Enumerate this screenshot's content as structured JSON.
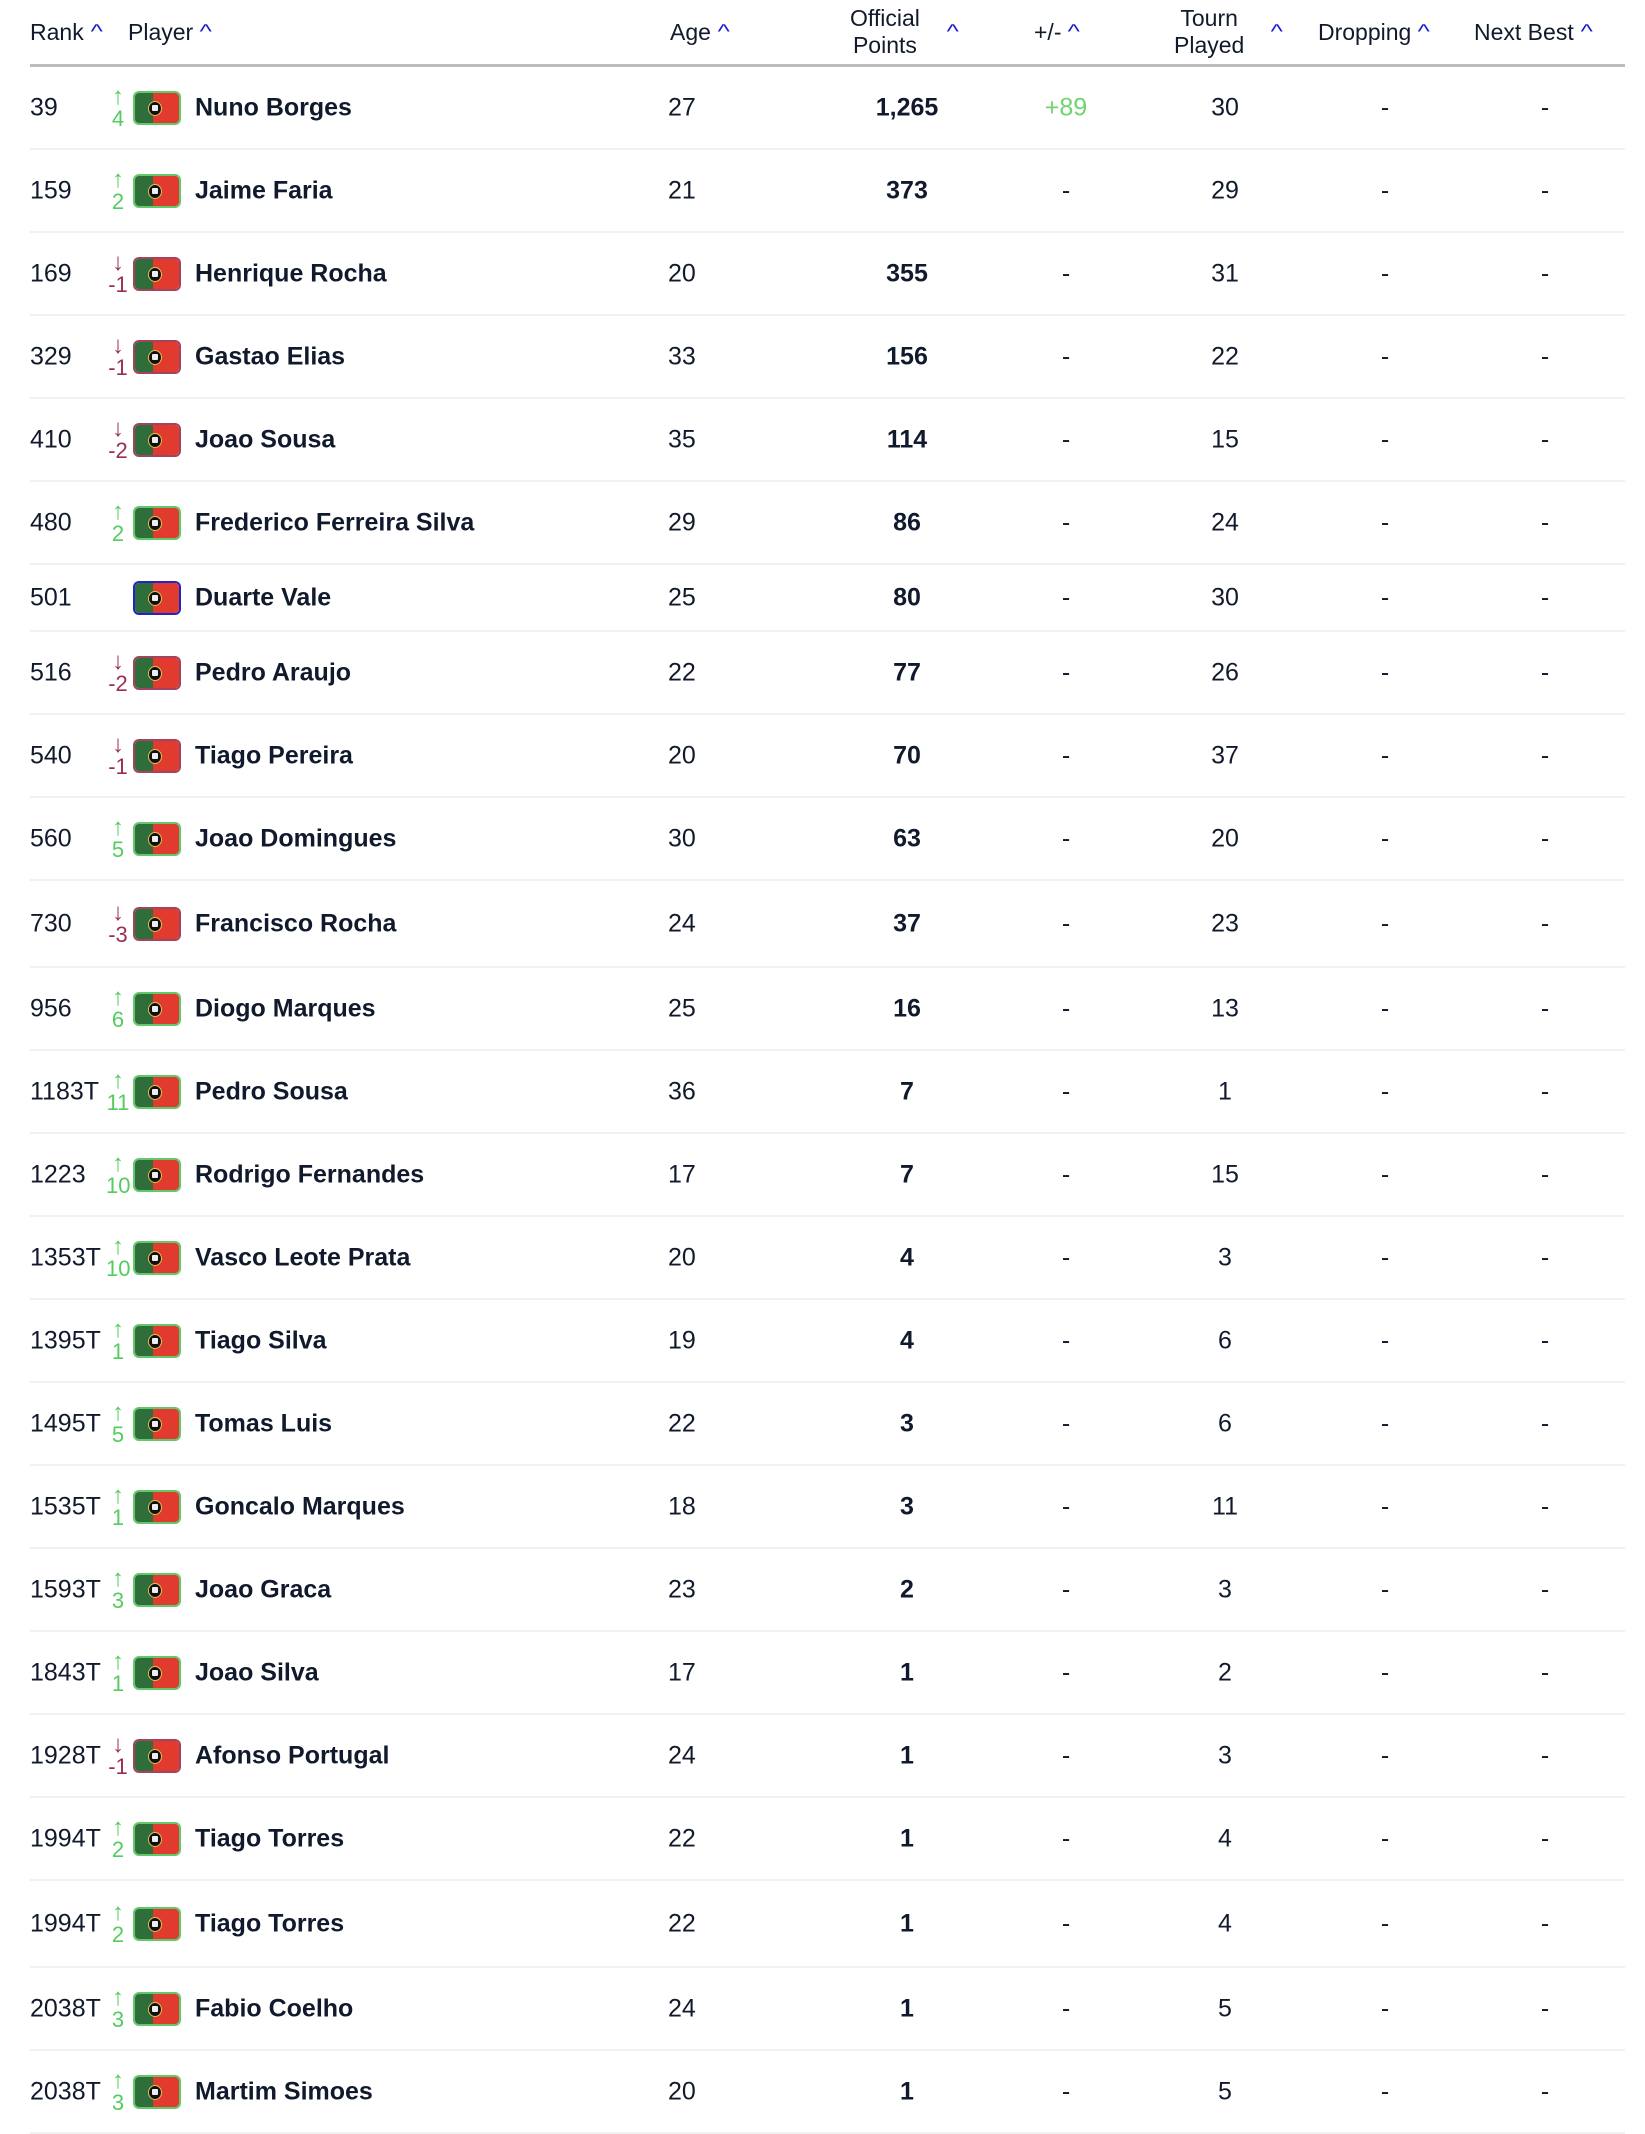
{
  "colors": {
    "up": "#55cc5f",
    "down": "#9a2f55",
    "sort_caret": "#1a1ad6",
    "positive_delta": "#6fd36f"
  },
  "header": {
    "rank": "Rank",
    "player": "Player",
    "age": "Age",
    "official_points_1": "Official",
    "official_points_2": "Points",
    "plus_minus": "+/-",
    "tourn_1": "Tourn",
    "tourn_2": "Played",
    "dropping": "Dropping",
    "next_best": "Next Best",
    "sort_icon": "^"
  },
  "rows": [
    {
      "rank": "39",
      "dir": "up",
      "change": "4",
      "name": "Nuno Borges",
      "age": "27",
      "points": "1,265",
      "pm": "+89",
      "played": "30",
      "dropping": "-",
      "next_best": "-"
    },
    {
      "rank": "159",
      "dir": "up",
      "change": "2",
      "name": "Jaime Faria",
      "age": "21",
      "points": "373",
      "pm": "-",
      "played": "29",
      "dropping": "-",
      "next_best": "-"
    },
    {
      "rank": "169",
      "dir": "down",
      "change": "-1",
      "name": "Henrique Rocha",
      "age": "20",
      "points": "355",
      "pm": "-",
      "played": "31",
      "dropping": "-",
      "next_best": "-"
    },
    {
      "rank": "329",
      "dir": "down",
      "change": "-1",
      "name": "Gastao Elias",
      "age": "33",
      "points": "156",
      "pm": "-",
      "played": "22",
      "dropping": "-",
      "next_best": "-"
    },
    {
      "rank": "410",
      "dir": "down",
      "change": "-2",
      "name": "Joao Sousa",
      "age": "35",
      "points": "114",
      "pm": "-",
      "played": "15",
      "dropping": "-",
      "next_best": "-"
    },
    {
      "rank": "480",
      "dir": "up",
      "change": "2",
      "name": "Frederico Ferreira Silva",
      "age": "29",
      "points": "86",
      "pm": "-",
      "played": "24",
      "dropping": "-",
      "next_best": "-"
    },
    {
      "rank": "501",
      "dir": "none",
      "change": "",
      "name": "Duarte Vale",
      "age": "25",
      "points": "80",
      "pm": "-",
      "played": "30",
      "dropping": "-",
      "next_best": "-"
    },
    {
      "rank": "516",
      "dir": "down",
      "change": "-2",
      "name": "Pedro Araujo",
      "age": "22",
      "points": "77",
      "pm": "-",
      "played": "26",
      "dropping": "-",
      "next_best": "-"
    },
    {
      "rank": "540",
      "dir": "down",
      "change": "-1",
      "name": "Tiago Pereira",
      "age": "20",
      "points": "70",
      "pm": "-",
      "played": "37",
      "dropping": "-",
      "next_best": "-"
    },
    {
      "rank": "560",
      "dir": "up",
      "change": "5",
      "name": "Joao Domingues",
      "age": "30",
      "points": "63",
      "pm": "-",
      "played": "20",
      "dropping": "-",
      "next_best": "-"
    },
    {
      "rank": "730",
      "dir": "down",
      "change": "-3",
      "name": "Francisco Rocha",
      "age": "24",
      "points": "37",
      "pm": "-",
      "played": "23",
      "dropping": "-",
      "next_best": "-"
    },
    {
      "rank": "956",
      "dir": "up",
      "change": "6",
      "name": "Diogo Marques",
      "age": "25",
      "points": "16",
      "pm": "-",
      "played": "13",
      "dropping": "-",
      "next_best": "-"
    },
    {
      "rank": "1183T",
      "dir": "up",
      "change": "11",
      "name": "Pedro Sousa",
      "age": "36",
      "points": "7",
      "pm": "-",
      "played": "1",
      "dropping": "-",
      "next_best": "-"
    },
    {
      "rank": "1223",
      "dir": "up",
      "change": "10",
      "name": "Rodrigo Fernandes",
      "age": "17",
      "points": "7",
      "pm": "-",
      "played": "15",
      "dropping": "-",
      "next_best": "-"
    },
    {
      "rank": "1353T",
      "dir": "up",
      "change": "10",
      "name": "Vasco Leote Prata",
      "age": "20",
      "points": "4",
      "pm": "-",
      "played": "3",
      "dropping": "-",
      "next_best": "-"
    },
    {
      "rank": "1395T",
      "dir": "up",
      "change": "1",
      "name": "Tiago Silva",
      "age": "19",
      "points": "4",
      "pm": "-",
      "played": "6",
      "dropping": "-",
      "next_best": "-"
    },
    {
      "rank": "1495T",
      "dir": "up",
      "change": "5",
      "name": "Tomas Luis",
      "age": "22",
      "points": "3",
      "pm": "-",
      "played": "6",
      "dropping": "-",
      "next_best": "-"
    },
    {
      "rank": "1535T",
      "dir": "up",
      "change": "1",
      "name": "Goncalo Marques",
      "age": "18",
      "points": "3",
      "pm": "-",
      "played": "11",
      "dropping": "-",
      "next_best": "-"
    },
    {
      "rank": "1593T",
      "dir": "up",
      "change": "3",
      "name": "Joao Graca",
      "age": "23",
      "points": "2",
      "pm": "-",
      "played": "3",
      "dropping": "-",
      "next_best": "-"
    },
    {
      "rank": "1843T",
      "dir": "up",
      "change": "1",
      "name": "Joao Silva",
      "age": "17",
      "points": "1",
      "pm": "-",
      "played": "2",
      "dropping": "-",
      "next_best": "-"
    },
    {
      "rank": "1928T",
      "dir": "down",
      "change": "-1",
      "name": "Afonso Portugal",
      "age": "24",
      "points": "1",
      "pm": "-",
      "played": "3",
      "dropping": "-",
      "next_best": "-"
    },
    {
      "rank": "1994T",
      "dir": "up",
      "change": "2",
      "name": "Tiago Torres",
      "age": "22",
      "points": "1",
      "pm": "-",
      "played": "4",
      "dropping": "-",
      "next_best": "-"
    },
    {
      "rank": "1994T",
      "dir": "up",
      "change": "2",
      "name": "Tiago Torres",
      "age": "22",
      "points": "1",
      "pm": "-",
      "played": "4",
      "dropping": "-",
      "next_best": "-"
    },
    {
      "rank": "2038T",
      "dir": "up",
      "change": "3",
      "name": "Fabio Coelho",
      "age": "24",
      "points": "1",
      "pm": "-",
      "played": "5",
      "dropping": "-",
      "next_best": "-"
    },
    {
      "rank": "2038T",
      "dir": "up",
      "change": "3",
      "name": "Martim Simoes",
      "age": "20",
      "points": "1",
      "pm": "-",
      "played": "5",
      "dropping": "-",
      "next_best": "-"
    }
  ]
}
